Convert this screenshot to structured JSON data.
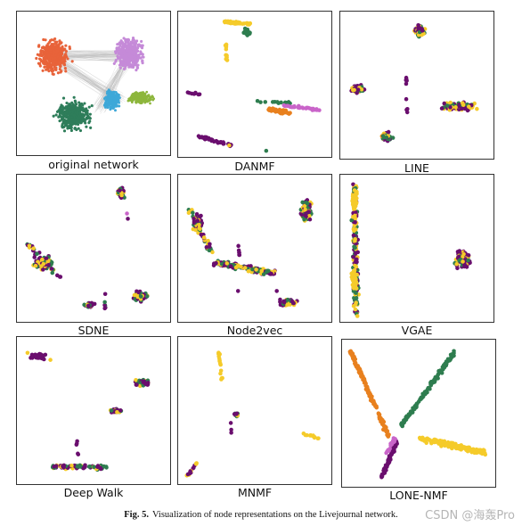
{
  "colors": {
    "purple": "#6a0e6e",
    "green": "#2e7d4f",
    "yellow": "#f5cb2a",
    "orange": "#e8801e",
    "magenta": "#c964c9",
    "orig_orange": "#e8633a",
    "orig_purple": "#c58ad8",
    "orig_green": "#2e7d5a",
    "orig_blue": "#3ea8d8",
    "orig_olive": "#8db63c"
  },
  "panels": [
    {
      "id": "original",
      "label": "original network"
    },
    {
      "id": "danmf",
      "label": "DANMF"
    },
    {
      "id": "line",
      "label": "LINE"
    },
    {
      "id": "sdne",
      "label": "SDNE"
    },
    {
      "id": "node2vec",
      "label": "Node2vec"
    },
    {
      "id": "vgae",
      "label": "VGAE"
    },
    {
      "id": "deepwalk",
      "label": "Deep Walk"
    },
    {
      "id": "mnmf",
      "label": "MNMF"
    },
    {
      "id": "lonenmf",
      "label": "LONE-NMF"
    }
  ],
  "caption": {
    "fig": "Fig. 5.",
    "text": "Visualization of node representations on the Livejournal network."
  },
  "watermark": "CSDN @海轰Pro"
}
